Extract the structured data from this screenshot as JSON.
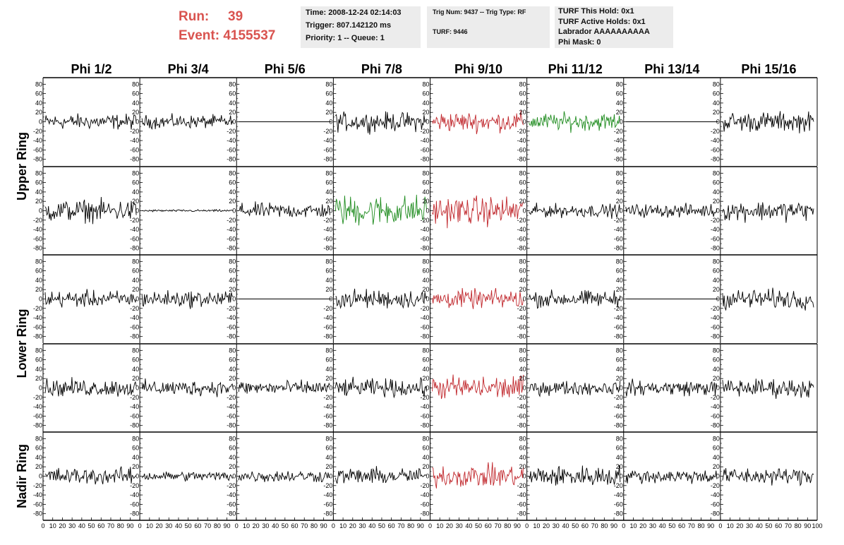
{
  "header": {
    "run_label": "Run:",
    "run_value": "39",
    "event_label": "Event:",
    "event_value": "4155537"
  },
  "info1": {
    "time": "Time: 2008-12-24 02:14:03",
    "trigger": "Trigger: 807.142120 ms",
    "priority": "Priority: 1 -- Queue: 1"
  },
  "info2": {
    "trig": "Trig Num: 9437 -- Trig Type: RF",
    "turf": "TURF: 9446"
  },
  "info3": {
    "hold": "TURF This Hold: 0x1",
    "active": "TURF Active Holds: 0x1",
    "labrador": "Labrador AAAAAAAAAA",
    "phimask": "Phi Mask: 0"
  },
  "colors": {
    "black": "#000000",
    "red": "#c0262b",
    "green": "#1f8c1f",
    "header_red": "#d9534f"
  },
  "chart_data": {
    "type": "line",
    "phi_titles": [
      "Phi 1/2",
      "Phi 3/4",
      "Phi 5/6",
      "Phi 7/8",
      "Phi 9/10",
      "Phi 11/12",
      "Phi 13/14",
      "Phi 15/16"
    ],
    "ring_labels": [
      "Upper Ring",
      "Lower Ring",
      "Nadir Ring"
    ],
    "ylim": [
      -85,
      85
    ],
    "yticks": [
      80,
      60,
      40,
      20,
      0,
      -20,
      -40,
      -60,
      -80
    ],
    "xlim": [
      0,
      100
    ],
    "xticks": [
      0,
      10,
      20,
      30,
      40,
      50,
      60,
      70,
      80,
      90,
      100
    ],
    "rows": [
      [
        {
          "color": "black",
          "amp": 14,
          "mode": "noise"
        },
        {
          "color": "black",
          "amp": 12,
          "mode": "noise"
        },
        {
          "color": "black",
          "amp": 0,
          "mode": "flat"
        },
        {
          "color": "black",
          "amp": 17,
          "mode": "noise"
        },
        {
          "color": "red",
          "amp": 18,
          "mode": "noise"
        },
        {
          "color": "green",
          "amp": 16,
          "mode": "noise"
        },
        {
          "color": "black",
          "amp": 0,
          "mode": "flat"
        },
        {
          "color": "black",
          "amp": 18,
          "mode": "noise"
        }
      ],
      [
        {
          "color": "black",
          "amp": 20,
          "mode": "noise"
        },
        {
          "color": "black",
          "amp": 2,
          "mode": "noise"
        },
        {
          "color": "black",
          "amp": 14,
          "mode": "noise"
        },
        {
          "color": "green",
          "amp": 28,
          "mode": "noise"
        },
        {
          "color": "red",
          "amp": 26,
          "mode": "noise"
        },
        {
          "color": "black",
          "amp": 12,
          "mode": "noise"
        },
        {
          "color": "black",
          "amp": 12,
          "mode": "noise"
        },
        {
          "color": "black",
          "amp": 18,
          "mode": "noise"
        }
      ],
      [
        {
          "color": "black",
          "amp": 15,
          "mode": "noise"
        },
        {
          "color": "black",
          "amp": 15,
          "mode": "noise"
        },
        {
          "color": "black",
          "amp": 0,
          "mode": "flat"
        },
        {
          "color": "black",
          "amp": 17,
          "mode": "noise"
        },
        {
          "color": "red",
          "amp": 17,
          "mode": "noise"
        },
        {
          "color": "black",
          "amp": 15,
          "mode": "noise"
        },
        {
          "color": "black",
          "amp": 0,
          "mode": "flat"
        },
        {
          "color": "black",
          "amp": 18,
          "mode": "noise"
        }
      ],
      [
        {
          "color": "black",
          "amp": 16,
          "mode": "noise"
        },
        {
          "color": "black",
          "amp": 14,
          "mode": "noise"
        },
        {
          "color": "black",
          "amp": 13,
          "mode": "noise"
        },
        {
          "color": "black",
          "amp": 16,
          "mode": "noise"
        },
        {
          "color": "red",
          "amp": 22,
          "mode": "noise"
        },
        {
          "color": "black",
          "amp": 13,
          "mode": "noise"
        },
        {
          "color": "black",
          "amp": 14,
          "mode": "noise"
        },
        {
          "color": "black",
          "amp": 17,
          "mode": "noise"
        }
      ],
      [
        {
          "color": "black",
          "amp": 15,
          "mode": "noise"
        },
        {
          "color": "black",
          "amp": 9,
          "mode": "noise"
        },
        {
          "color": "black",
          "amp": 11,
          "mode": "noise"
        },
        {
          "color": "black",
          "amp": 15,
          "mode": "noise"
        },
        {
          "color": "red",
          "amp": 20,
          "mode": "noise"
        },
        {
          "color": "black",
          "amp": 19,
          "mode": "noise"
        },
        {
          "color": "black",
          "amp": 13,
          "mode": "noise"
        },
        {
          "color": "black",
          "amp": 15,
          "mode": "noise"
        }
      ]
    ]
  }
}
